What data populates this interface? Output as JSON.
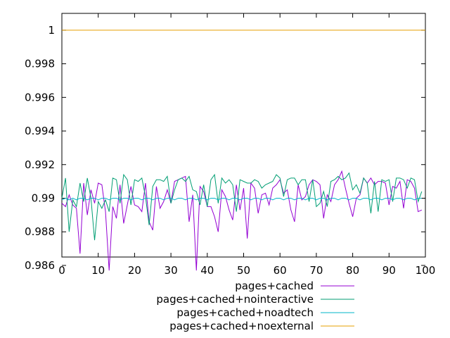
{
  "chart_data": {
    "type": "line",
    "title": "",
    "xlabel": "",
    "ylabel": "",
    "xlim": [
      0,
      100
    ],
    "ylim": [
      0.9865,
      1.001
    ],
    "xticks": [
      0,
      10,
      20,
      30,
      40,
      50,
      60,
      70,
      80,
      90,
      100
    ],
    "xtick_labels": [
      "0",
      "10",
      "20",
      "30",
      "40",
      "50",
      "60",
      "70",
      "80",
      "90",
      "100"
    ],
    "yticks": [
      0.986,
      0.988,
      0.99,
      0.992,
      0.994,
      0.996,
      0.998,
      1
    ],
    "ytick_labels": [
      "0.986",
      "0.988",
      "0.99",
      "0.992",
      "0.994",
      "0.996",
      "0.998",
      "1"
    ],
    "grid": false,
    "legend_position": "bottom-center",
    "series": [
      {
        "name": "pages+cached",
        "color": "#9400d3",
        "x": [
          0,
          1,
          2,
          3,
          4,
          5,
          6,
          7,
          8,
          9,
          10,
          11,
          12,
          13,
          14,
          15,
          16,
          17,
          18,
          19,
          20,
          21,
          22,
          23,
          24,
          25,
          26,
          27,
          28,
          29,
          30,
          31,
          32,
          33,
          34,
          35,
          36,
          37,
          38,
          39,
          40,
          41,
          42,
          43,
          44,
          45,
          46,
          47,
          48,
          49,
          50,
          51,
          52,
          53,
          54,
          55,
          56,
          57,
          58,
          59,
          60,
          61,
          62,
          63,
          64,
          65,
          66,
          67,
          68,
          69,
          70,
          71,
          72,
          73,
          74,
          75,
          76,
          77,
          78,
          79,
          80,
          81,
          82,
          83,
          84,
          85,
          86,
          87,
          88,
          89,
          90,
          91,
          92,
          93,
          94,
          95,
          96,
          97,
          98,
          99
        ],
        "values": [
          0.9897,
          0.9895,
          0.9902,
          0.9896,
          0.9894,
          0.9867,
          0.9909,
          0.989,
          0.9905,
          0.9897,
          0.9909,
          0.9908,
          0.9892,
          0.9857,
          0.9895,
          0.9888,
          0.9908,
          0.9885,
          0.9896,
          0.9907,
          0.9896,
          0.9895,
          0.9892,
          0.9909,
          0.9886,
          0.9881,
          0.9907,
          0.9894,
          0.9898,
          0.9905,
          0.9897,
          0.991,
          0.9911,
          0.9912,
          0.9913,
          0.9886,
          0.9902,
          0.9857,
          0.9907,
          0.9904,
          0.9895,
          0.9895,
          0.9889,
          0.988,
          0.9905,
          0.9901,
          0.9893,
          0.9887,
          0.9908,
          0.9893,
          0.9906,
          0.9876,
          0.9909,
          0.9906,
          0.9891,
          0.9902,
          0.9903,
          0.9896,
          0.9906,
          0.9908,
          0.9911,
          0.9903,
          0.9905,
          0.9893,
          0.9886,
          0.9908,
          0.9899,
          0.9901,
          0.9908,
          0.9911,
          0.991,
          0.9908,
          0.9888,
          0.9902,
          0.9898,
          0.9908,
          0.9911,
          0.9916,
          0.9906,
          0.9897,
          0.9889,
          0.99,
          0.9902,
          0.9912,
          0.9909,
          0.9912,
          0.9908,
          0.991,
          0.991,
          0.9909,
          0.9896,
          0.9907,
          0.9906,
          0.991,
          0.9894,
          0.9911,
          0.991,
          0.9906,
          0.9892,
          0.9893
        ]
      },
      {
        "name": "pages+cached+nointeractive",
        "color": "#009e73",
        "x": [
          0,
          1,
          2,
          3,
          4,
          5,
          6,
          7,
          8,
          9,
          10,
          11,
          12,
          13,
          14,
          15,
          16,
          17,
          18,
          19,
          20,
          21,
          22,
          23,
          24,
          25,
          26,
          27,
          28,
          29,
          30,
          31,
          32,
          33,
          34,
          35,
          36,
          37,
          38,
          39,
          40,
          41,
          42,
          43,
          44,
          45,
          46,
          47,
          48,
          49,
          50,
          51,
          52,
          53,
          54,
          55,
          56,
          57,
          58,
          59,
          60,
          61,
          62,
          63,
          64,
          65,
          66,
          67,
          68,
          69,
          70,
          71,
          72,
          73,
          74,
          75,
          76,
          77,
          78,
          79,
          80,
          81,
          82,
          83,
          84,
          85,
          86,
          87,
          88,
          89,
          90,
          91,
          92,
          93,
          94,
          95,
          96,
          97,
          98,
          99
        ],
        "values": [
          0.99,
          0.9912,
          0.988,
          0.9899,
          0.9895,
          0.9909,
          0.9898,
          0.9912,
          0.99,
          0.9875,
          0.9898,
          0.9894,
          0.9899,
          0.9892,
          0.9912,
          0.9911,
          0.9897,
          0.9914,
          0.9911,
          0.9896,
          0.9911,
          0.991,
          0.9912,
          0.9901,
          0.9884,
          0.9907,
          0.9911,
          0.9911,
          0.991,
          0.9913,
          0.9897,
          0.9905,
          0.9911,
          0.9912,
          0.991,
          0.9913,
          0.9905,
          0.9904,
          0.9896,
          0.9908,
          0.9895,
          0.9911,
          0.9914,
          0.9897,
          0.9912,
          0.9909,
          0.9911,
          0.9908,
          0.9892,
          0.9911,
          0.991,
          0.9909,
          0.9909,
          0.9911,
          0.991,
          0.9906,
          0.9908,
          0.9909,
          0.991,
          0.9914,
          0.9912,
          0.9901,
          0.9911,
          0.9912,
          0.9912,
          0.9908,
          0.9911,
          0.9911,
          0.9898,
          0.9911,
          0.9895,
          0.9897,
          0.9904,
          0.9895,
          0.991,
          0.9911,
          0.9913,
          0.9911,
          0.9912,
          0.9915,
          0.9905,
          0.9908,
          0.9903,
          0.9912,
          0.9909,
          0.9891,
          0.991,
          0.9892,
          0.9911,
          0.991,
          0.9911,
          0.9898,
          0.9912,
          0.9912,
          0.9911,
          0.9906,
          0.9912,
          0.9911,
          0.9898,
          0.9904
        ]
      },
      {
        "name": "pages+cached+noadtech",
        "color": "#00b4c8",
        "x": [
          0,
          1,
          2,
          3,
          4,
          5,
          6,
          7,
          8,
          9,
          10,
          11,
          12,
          13,
          14,
          15,
          16,
          17,
          18,
          19,
          20,
          21,
          22,
          23,
          24,
          25,
          26,
          27,
          28,
          29,
          30,
          31,
          32,
          33,
          34,
          35,
          36,
          37,
          38,
          39,
          40,
          41,
          42,
          43,
          44,
          45,
          46,
          47,
          48,
          49,
          50,
          51,
          52,
          53,
          54,
          55,
          56,
          57,
          58,
          59,
          60,
          61,
          62,
          63,
          64,
          65,
          66,
          67,
          68,
          69,
          70,
          71,
          72,
          73,
          74,
          75,
          76,
          77,
          78,
          79,
          80,
          81,
          82,
          83,
          84,
          85,
          86,
          87,
          88,
          89,
          90,
          91,
          92,
          93,
          94,
          95,
          96,
          97,
          98,
          99
        ],
        "values": [
          0.9899,
          0.99,
          0.9899,
          0.99,
          0.9899,
          0.99,
          0.99,
          0.9899,
          0.99,
          0.99,
          0.9899,
          0.99,
          0.99,
          0.9899,
          0.99,
          0.99,
          0.9899,
          0.99,
          0.99,
          0.9899,
          0.99,
          0.99,
          0.9899,
          0.99,
          0.99,
          0.9899,
          0.99,
          0.99,
          0.9899,
          0.99,
          0.99,
          0.9899,
          0.99,
          0.99,
          0.9899,
          0.99,
          0.99,
          0.9899,
          0.99,
          0.99,
          0.9899,
          0.99,
          0.99,
          0.9899,
          0.99,
          0.99,
          0.9899,
          0.99,
          0.99,
          0.9899,
          0.99,
          0.99,
          0.9899,
          0.99,
          0.99,
          0.9899,
          0.99,
          0.99,
          0.9899,
          0.99,
          0.99,
          0.9899,
          0.99,
          0.99,
          0.9899,
          0.99,
          0.99,
          0.9899,
          0.99,
          0.99,
          0.9899,
          0.99,
          0.99,
          0.9899,
          0.99,
          0.99,
          0.9899,
          0.99,
          0.99,
          0.9899,
          0.99,
          0.99,
          0.9899,
          0.99,
          0.99,
          0.9899,
          0.99,
          0.99,
          0.9899,
          0.99,
          0.99,
          0.9899,
          0.99,
          0.99,
          0.9899,
          0.99,
          0.99,
          0.9899,
          0.99,
          0.99
        ]
      },
      {
        "name": "pages+cached+noexternal",
        "color": "#e69f00",
        "x": [
          0,
          100
        ],
        "values": [
          1,
          1
        ]
      }
    ]
  }
}
